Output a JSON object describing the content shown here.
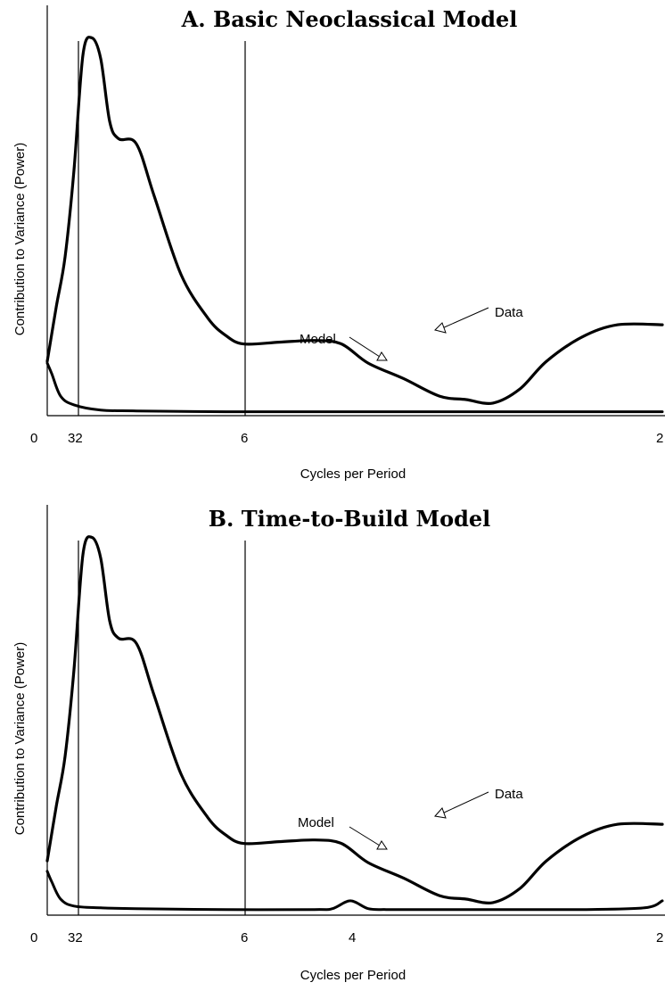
{
  "chart_data": [
    {
      "type": "line",
      "title": "A.  Basic Neoclassical Model",
      "xlabel": "Cycles per Period",
      "ylabel": "Contribution to Variance (Power)",
      "x_ticks": [
        "0",
        "32",
        "6",
        "2"
      ],
      "reference_lines": [
        "32",
        "6"
      ],
      "annotations": {
        "data": "Data",
        "model": "Model"
      },
      "grid": false,
      "series": [
        {
          "name": "Data",
          "x": [
            0,
            10,
            20,
            30,
            40,
            50,
            60,
            70,
            80,
            100,
            120,
            150,
            180,
            200,
            220,
            260,
            300,
            330,
            360,
            400,
            440,
            470,
            500,
            530,
            560,
            600,
            640,
            690
          ],
          "y": [
            2,
            33,
            62,
            112,
            178,
            188,
            176,
            140,
            130,
            127,
            97,
            52,
            27,
            17,
            12,
            13,
            14,
            12,
            1,
            -8,
            -18,
            -20,
            -22,
            -14,
            2,
            16,
            23,
            23
          ]
        },
        {
          "name": "Model",
          "x": [
            0,
            5,
            15,
            30,
            60,
            100,
            200,
            300,
            400,
            500,
            600,
            690
          ],
          "y": [
            1,
            -5,
            -18,
            -23,
            -26,
            -26.5,
            -27,
            -27,
            -27,
            -27,
            -27,
            -27
          ]
        }
      ]
    },
    {
      "type": "line",
      "title": "B.  Time-to-Build Model",
      "xlabel": "Cycles per Period",
      "ylabel": "Contribution to Variance (Power)",
      "x_ticks": [
        "0",
        "32",
        "6",
        "4",
        "2"
      ],
      "reference_lines": [
        "32",
        "6"
      ],
      "annotations": {
        "data": "Data",
        "model": "Model"
      },
      "grid": false,
      "series": [
        {
          "name": "Data",
          "x": [
            0,
            10,
            20,
            30,
            40,
            50,
            60,
            70,
            80,
            100,
            120,
            150,
            180,
            200,
            220,
            260,
            300,
            330,
            360,
            400,
            440,
            470,
            500,
            530,
            560,
            600,
            640,
            690
          ],
          "y": [
            2,
            33,
            62,
            112,
            178,
            188,
            176,
            140,
            130,
            127,
            97,
            52,
            27,
            17,
            12,
            13,
            14,
            12,
            1,
            -8,
            -18,
            -20,
            -22,
            -14,
            2,
            16,
            23,
            23
          ]
        },
        {
          "name": "Model",
          "x": [
            0,
            5,
            15,
            30,
            60,
            100,
            200,
            300,
            320,
            340,
            360,
            380,
            400,
            500,
            600,
            670,
            690
          ],
          "y": [
            -4,
            -10,
            -20,
            -24,
            -25,
            -25.5,
            -26,
            -26,
            -25.5,
            -21,
            -25.5,
            -26,
            -26,
            -26,
            -26,
            -25,
            -21
          ]
        }
      ]
    }
  ]
}
